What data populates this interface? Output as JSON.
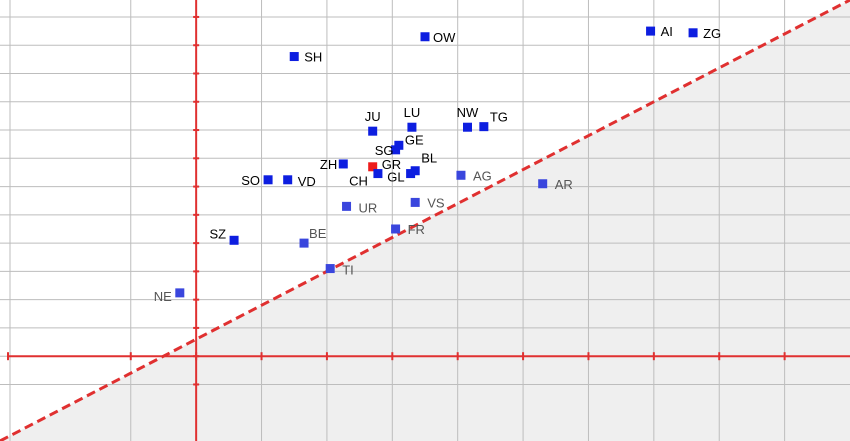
{
  "chart_data": {
    "type": "scatter",
    "title": "",
    "xlabel": "",
    "ylabel": "",
    "xlim": [
      -3,
      10
    ],
    "ylim": [
      -1.5,
      6.3
    ],
    "x_gridlines": [
      -1,
      0,
      1,
      2,
      3,
      4,
      5,
      6,
      7,
      8,
      9
    ],
    "y_gridlines": [
      -0.5,
      0,
      0.5,
      1,
      1.5,
      2,
      2.5,
      3,
      3.5,
      4,
      4.5,
      5,
      5.5,
      6
    ],
    "grid": true,
    "reference_axes": {
      "x": 0,
      "y": 0,
      "color": "#e03030"
    },
    "diagonal": {
      "from": [
        -3,
        -1.5
      ],
      "to": [
        10,
        6.3
      ],
      "color": "#e03030",
      "style": "dashed"
    },
    "shaded_region": "below-diagonal",
    "colors": {
      "above": "#0d1ee0",
      "below": "#3a46dd",
      "highlight": "#ee1c1c",
      "grid": "#bdbdbd",
      "shade": "#efefef"
    },
    "points": [
      {
        "label": "OW",
        "x": 3.5,
        "y": 5.65,
        "group": "above"
      },
      {
        "label": "AI",
        "x": 6.95,
        "y": 5.75,
        "group": "above"
      },
      {
        "label": "ZG",
        "x": 7.6,
        "y": 5.72,
        "group": "above"
      },
      {
        "label": "SH",
        "x": 1.5,
        "y": 5.3,
        "group": "above"
      },
      {
        "label": "JU",
        "x": 2.7,
        "y": 3.98,
        "group": "above"
      },
      {
        "label": "LU",
        "x": 3.3,
        "y": 4.05,
        "group": "above"
      },
      {
        "label": "NW",
        "x": 4.15,
        "y": 4.05,
        "group": "above"
      },
      {
        "label": "TG",
        "x": 4.4,
        "y": 4.06,
        "group": "above"
      },
      {
        "label": "GE",
        "x": 3.1,
        "y": 3.73,
        "group": "above"
      },
      {
        "label": "SG",
        "x": 3.05,
        "y": 3.65,
        "group": "above"
      },
      {
        "label": "ZH",
        "x": 2.25,
        "y": 3.4,
        "group": "above"
      },
      {
        "label": "GR",
        "x": 2.7,
        "y": 3.35,
        "group": "highlight"
      },
      {
        "label": "CH",
        "x": 2.78,
        "y": 3.23,
        "group": "above"
      },
      {
        "label": "BL",
        "x": 3.35,
        "y": 3.28,
        "group": "above"
      },
      {
        "label": "GL",
        "x": 3.28,
        "y": 3.23,
        "group": "above"
      },
      {
        "label": "SO",
        "x": 1.1,
        "y": 3.12,
        "group": "above"
      },
      {
        "label": "VD",
        "x": 1.4,
        "y": 3.12,
        "group": "above"
      },
      {
        "label": "AG",
        "x": 4.05,
        "y": 3.2,
        "group": "below"
      },
      {
        "label": "AR",
        "x": 5.3,
        "y": 3.05,
        "group": "below"
      },
      {
        "label": "UR",
        "x": 2.3,
        "y": 2.65,
        "group": "below"
      },
      {
        "label": "VS",
        "x": 3.35,
        "y": 2.72,
        "group": "below"
      },
      {
        "label": "SZ",
        "x": 0.58,
        "y": 2.05,
        "group": "above"
      },
      {
        "label": "BE",
        "x": 1.65,
        "y": 2.0,
        "group": "below"
      },
      {
        "label": "FR",
        "x": 3.05,
        "y": 2.25,
        "group": "below"
      },
      {
        "label": "TI",
        "x": 2.05,
        "y": 1.55,
        "group": "below"
      },
      {
        "label": "NE",
        "x": -0.25,
        "y": 1.12,
        "group": "below"
      }
    ]
  }
}
